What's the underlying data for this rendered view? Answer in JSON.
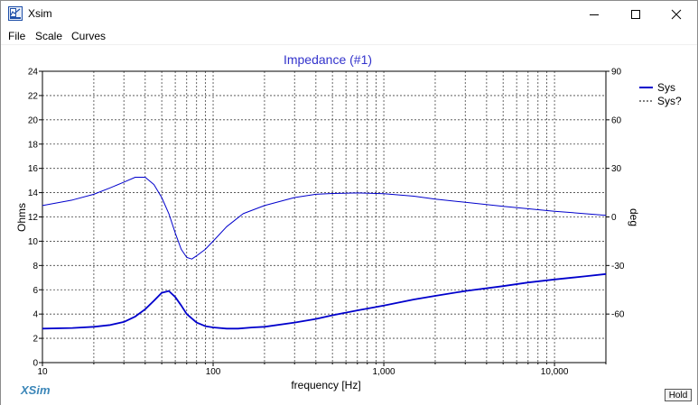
{
  "window": {
    "title": "Xsim"
  },
  "menu": [
    "File",
    "Scale",
    "Curves"
  ],
  "brand": "XSim",
  "hold_label": "Hold",
  "chart_data": {
    "type": "line",
    "title": "Impedance (#1)",
    "xlabel": "frequency [Hz]",
    "ylabel": "Ohms",
    "y2label": "deg",
    "xscale": "log",
    "xlim": [
      10,
      20000
    ],
    "ylim": [
      0,
      24
    ],
    "y2lim": [
      -90,
      90
    ],
    "x_ticks": [
      10,
      100,
      1000,
      10000
    ],
    "x_tick_labels": [
      "10",
      "100",
      "1,000",
      "10,000"
    ],
    "y_ticks": [
      0,
      2,
      4,
      6,
      8,
      10,
      12,
      14,
      16,
      18,
      20,
      22,
      24
    ],
    "y2_ticks": [
      -60,
      -30,
      0,
      30,
      60,
      90
    ],
    "grid": true,
    "legend_position": "right",
    "legend": [
      "Sys",
      "Sys?"
    ],
    "colors": {
      "series": "#0000cc",
      "title": "#3333cc",
      "brand": "#3b86b8"
    },
    "series": [
      {
        "name": "Sys",
        "axis": "left",
        "x": [
          10,
          15,
          20,
          25,
          30,
          35,
          40,
          45,
          50,
          55,
          60,
          65,
          70,
          80,
          90,
          100,
          120,
          140,
          170,
          200,
          300,
          400,
          500,
          700,
          1000,
          1500,
          2000,
          3000,
          5000,
          7000,
          10000,
          15000,
          20000
        ],
        "values": [
          2.8,
          2.85,
          2.95,
          3.1,
          3.35,
          3.8,
          4.4,
          5.1,
          5.75,
          5.9,
          5.4,
          4.7,
          4.0,
          3.3,
          3.0,
          2.9,
          2.8,
          2.8,
          2.9,
          2.95,
          3.3,
          3.6,
          3.9,
          4.3,
          4.7,
          5.2,
          5.5,
          5.9,
          6.3,
          6.6,
          6.85,
          7.1,
          7.3
        ]
      },
      {
        "name": "Sys?",
        "axis": "right",
        "x": [
          10,
          15,
          20,
          25,
          30,
          35,
          40,
          45,
          50,
          55,
          60,
          65,
          70,
          75,
          80,
          90,
          100,
          120,
          150,
          200,
          300,
          400,
          500,
          700,
          1000,
          1500,
          2000,
          3000,
          5000,
          10000,
          20000
        ],
        "values": [
          7,
          10.5,
          14,
          18,
          21.5,
          24.5,
          24.5,
          20,
          12,
          2,
          -10,
          -20,
          -25,
          -26,
          -24,
          -20,
          -15,
          -6,
          2,
          7,
          12,
          14,
          14.5,
          14.8,
          14.3,
          12.8,
          11,
          9,
          6.5,
          3.5,
          1
        ]
      }
    ]
  }
}
